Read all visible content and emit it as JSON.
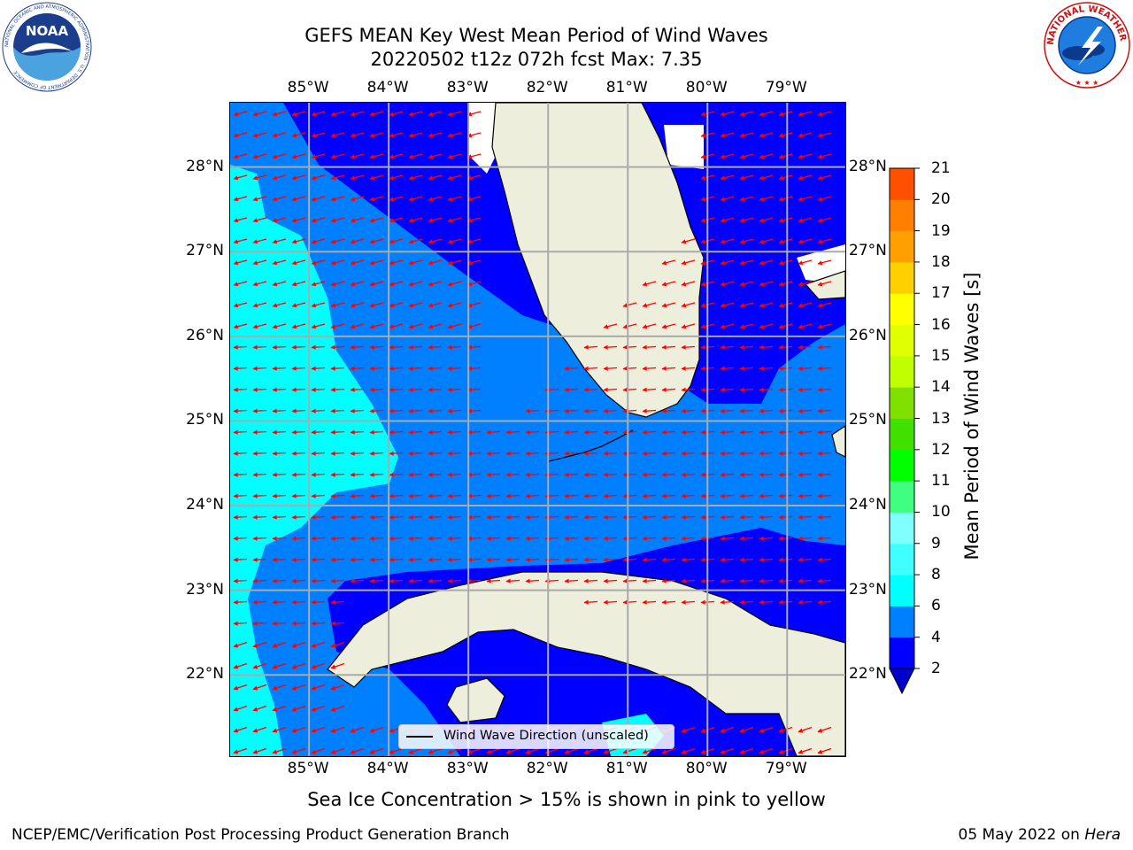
{
  "header": {
    "title_line1": "GEFS MEAN Key West Mean Period of Wind Waves",
    "title_line2": "20220502 t12z 072h fcst   Max: 7.35"
  },
  "logos": {
    "left": {
      "name": "noaa-logo",
      "text": "NOAA",
      "ring_text": "NATIONAL OCEANIC AND ATMOSPHERIC ADMINISTRATION · U.S. DEPARTMENT OF COMMERCE"
    },
    "right": {
      "name": "nws-logo",
      "ring_text": "NATIONAL WEATHER SERVICE"
    }
  },
  "map": {
    "lon_ticks": [
      "85°W",
      "84°W",
      "83°W",
      "82°W",
      "81°W",
      "80°W",
      "79°W"
    ],
    "lat_ticks": [
      "28°N",
      "27°N",
      "26°N",
      "25°N",
      "24°N",
      "23°N",
      "22°N"
    ],
    "lon_values": [
      -85,
      -84,
      -83,
      -82,
      -81,
      -80,
      -79
    ],
    "lat_values": [
      28,
      27,
      26,
      25,
      24,
      23,
      22
    ],
    "extent": {
      "lon_min": -85.99,
      "lon_max": -78.27,
      "lat_min": 21.04,
      "lat_max": 28.76
    },
    "gridlines": true,
    "land_color": "#eeeedc",
    "arrow_color": "#ff0000",
    "legend": {
      "label": "Wind Wave Direction (unscaled)"
    }
  },
  "colorbar": {
    "label": "Mean Period of Wind Waves [s]",
    "ticks": [
      "2",
      "4",
      "6",
      "8",
      "9",
      "10",
      "11",
      "12",
      "13",
      "14",
      "15",
      "16",
      "17",
      "18",
      "19",
      "20",
      "21"
    ],
    "colors": [
      "#0000ff",
      "#0080ff",
      "#00ffff",
      "#40ffff",
      "#80ffff",
      "#40ff80",
      "#00ff00",
      "#40e000",
      "#80e000",
      "#c0ff00",
      "#e0ff00",
      "#ffff00",
      "#ffd000",
      "#ffa000",
      "#ff8000",
      "#ff5000",
      "#ff2000",
      "#ff0000"
    ],
    "under_color": "#0000cc"
  },
  "chart_data": {
    "type": "heatmap",
    "title": "GEFS MEAN Key West Mean Period of Wind Waves",
    "subtitle": "20220502 t12z 072h fcst   Max: 7.35",
    "variable": "Mean Period of Wind Waves [s]",
    "max": 7.35,
    "levels": [
      2,
      4,
      6,
      8,
      9,
      10,
      11,
      12,
      13,
      14,
      15,
      16,
      17,
      18,
      19,
      20,
      21
    ],
    "x_range": [
      -86,
      -78.3
    ],
    "y_range": [
      21.0,
      28.8
    ],
    "xlabel": "",
    "ylabel": "",
    "grid": true,
    "legend_position": "bottom-center"
  },
  "notes": {
    "sea_ice": "Sea Ice Concentration > 15% is shown in pink to yellow"
  },
  "footer": {
    "left": "NCEP/EMC/Verification Post Processing Product Generation Branch",
    "right_date": "05 May 2022 on ",
    "right_host": "Hera"
  }
}
